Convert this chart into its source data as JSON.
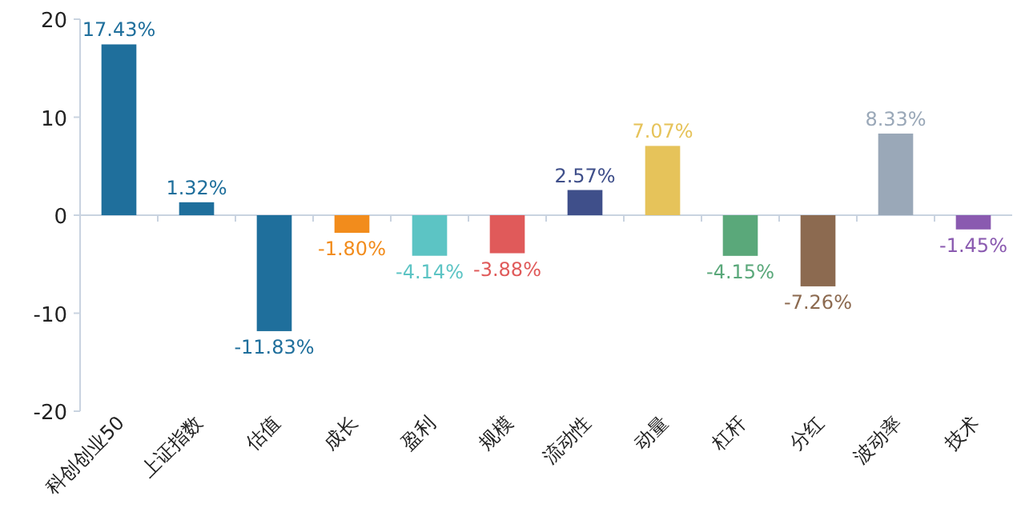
{
  "chart_data": {
    "type": "bar",
    "categories": [
      "科创创业50",
      "上证指数",
      "估值",
      "成长",
      "盈利",
      "规模",
      "流动性",
      "动量",
      "杠杆",
      "分红",
      "波动率",
      "技术"
    ],
    "values": [
      17.43,
      1.32,
      -11.83,
      -1.8,
      -4.14,
      -3.88,
      2.57,
      7.07,
      -4.15,
      -7.26,
      8.33,
      -1.45
    ],
    "colors": [
      "#1f6f9c",
      "#1f6f9c",
      "#1f6f9c",
      "#f28c1c",
      "#5cc4c4",
      "#e05a5a",
      "#3f4f8a",
      "#e6c35a",
      "#5aa87a",
      "#8c6a50",
      "#9aa8b8",
      "#8a5ab0"
    ],
    "value_labels": [
      "17.43%",
      "1.32%",
      "-11.83%",
      "-1.80%",
      "-4.14%",
      "-3.88%",
      "2.57%",
      "7.07%",
      "-4.15%",
      "-7.26%",
      "8.33%",
      "-1.45%"
    ],
    "ylim": [
      -20,
      20
    ],
    "yticks": [
      -20,
      -10,
      0,
      10,
      20
    ]
  }
}
